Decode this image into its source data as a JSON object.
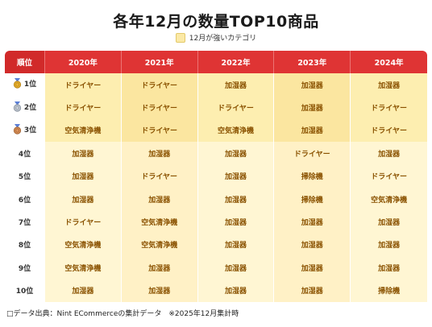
{
  "title": "各年12月の数量TOP10商品",
  "legend": {
    "label": "12月が強いカテゴリ",
    "color": "#fbe9a6"
  },
  "table": {
    "rank_header": "順位",
    "years": [
      "2020年",
      "2021年",
      "2022年",
      "2023年",
      "2024年"
    ],
    "rows": [
      {
        "rank": "1位",
        "medal": "gold",
        "items": [
          "ドライヤー",
          "ドライヤー",
          "加湿器",
          "加湿器",
          "加湿器"
        ]
      },
      {
        "rank": "2位",
        "medal": "silver",
        "items": [
          "ドライヤー",
          "ドライヤー",
          "ドライヤー",
          "加湿器",
          "ドライヤー"
        ]
      },
      {
        "rank": "3位",
        "medal": "bronze",
        "items": [
          "空気清浄機",
          "ドライヤー",
          "空気清浄機",
          "加湿器",
          "ドライヤー"
        ]
      },
      {
        "rank": "4位",
        "medal": "",
        "items": [
          "加湿器",
          "加湿器",
          "加湿器",
          "ドライヤー",
          "加湿器"
        ]
      },
      {
        "rank": "5位",
        "medal": "",
        "items": [
          "加湿器",
          "ドライヤー",
          "加湿器",
          "掃除機",
          "ドライヤー"
        ]
      },
      {
        "rank": "6位",
        "medal": "",
        "items": [
          "加湿器",
          "加湿器",
          "加湿器",
          "掃除機",
          "空気清浄機"
        ]
      },
      {
        "rank": "7位",
        "medal": "",
        "items": [
          "ドライヤー",
          "空気清浄機",
          "加湿器",
          "加湿器",
          "加湿器"
        ]
      },
      {
        "rank": "8位",
        "medal": "",
        "items": [
          "空気清浄機",
          "空気清浄機",
          "加湿器",
          "加湿器",
          "加湿器"
        ]
      },
      {
        "rank": "9位",
        "medal": "",
        "items": [
          "空気清浄機",
          "加湿器",
          "加湿器",
          "加湿器",
          "加湿器"
        ]
      },
      {
        "rank": "10位",
        "medal": "",
        "items": [
          "加湿器",
          "加湿器",
          "加湿器",
          "加湿器",
          "掃除機"
        ]
      }
    ]
  },
  "chart_data": {
    "type": "table",
    "title": "各年12月の数量TOP10商品",
    "columns": [
      "順位",
      "2020年",
      "2021年",
      "2022年",
      "2023年",
      "2024年"
    ],
    "rows": [
      [
        "1位",
        "ドライヤー",
        "ドライヤー",
        "加湿器",
        "加湿器",
        "加湿器"
      ],
      [
        "2位",
        "ドライヤー",
        "ドライヤー",
        "ドライヤー",
        "加湿器",
        "ドライヤー"
      ],
      [
        "3位",
        "空気清浄機",
        "ドライヤー",
        "空気清浄機",
        "加湿器",
        "ドライヤー"
      ],
      [
        "4位",
        "加湿器",
        "加湿器",
        "加湿器",
        "ドライヤー",
        "加湿器"
      ],
      [
        "5位",
        "加湿器",
        "ドライヤー",
        "加湿器",
        "掃除機",
        "ドライヤー"
      ],
      [
        "6位",
        "加湿器",
        "加湿器",
        "加湿器",
        "掃除機",
        "空気清浄機"
      ],
      [
        "7位",
        "ドライヤー",
        "空気清浄機",
        "加湿器",
        "加湿器",
        "加湿器"
      ],
      [
        "8位",
        "空気清浄機",
        "空気清浄機",
        "加湿器",
        "加湿器",
        "加湿器"
      ],
      [
        "9位",
        "空気清浄機",
        "加湿器",
        "加湿器",
        "加湿器",
        "加湿器"
      ],
      [
        "10位",
        "加湿器",
        "加湿器",
        "加湿器",
        "加湿器",
        "掃除機"
      ]
    ],
    "legend": [
      "12月が強いカテゴリ"
    ]
  },
  "footer": "□データ出典：Nint ECommerceの集計データ　※2025年12月集計時",
  "colors": {
    "header": "#df3434",
    "highlight": "#fbe9a6",
    "text": "#8a5200"
  }
}
